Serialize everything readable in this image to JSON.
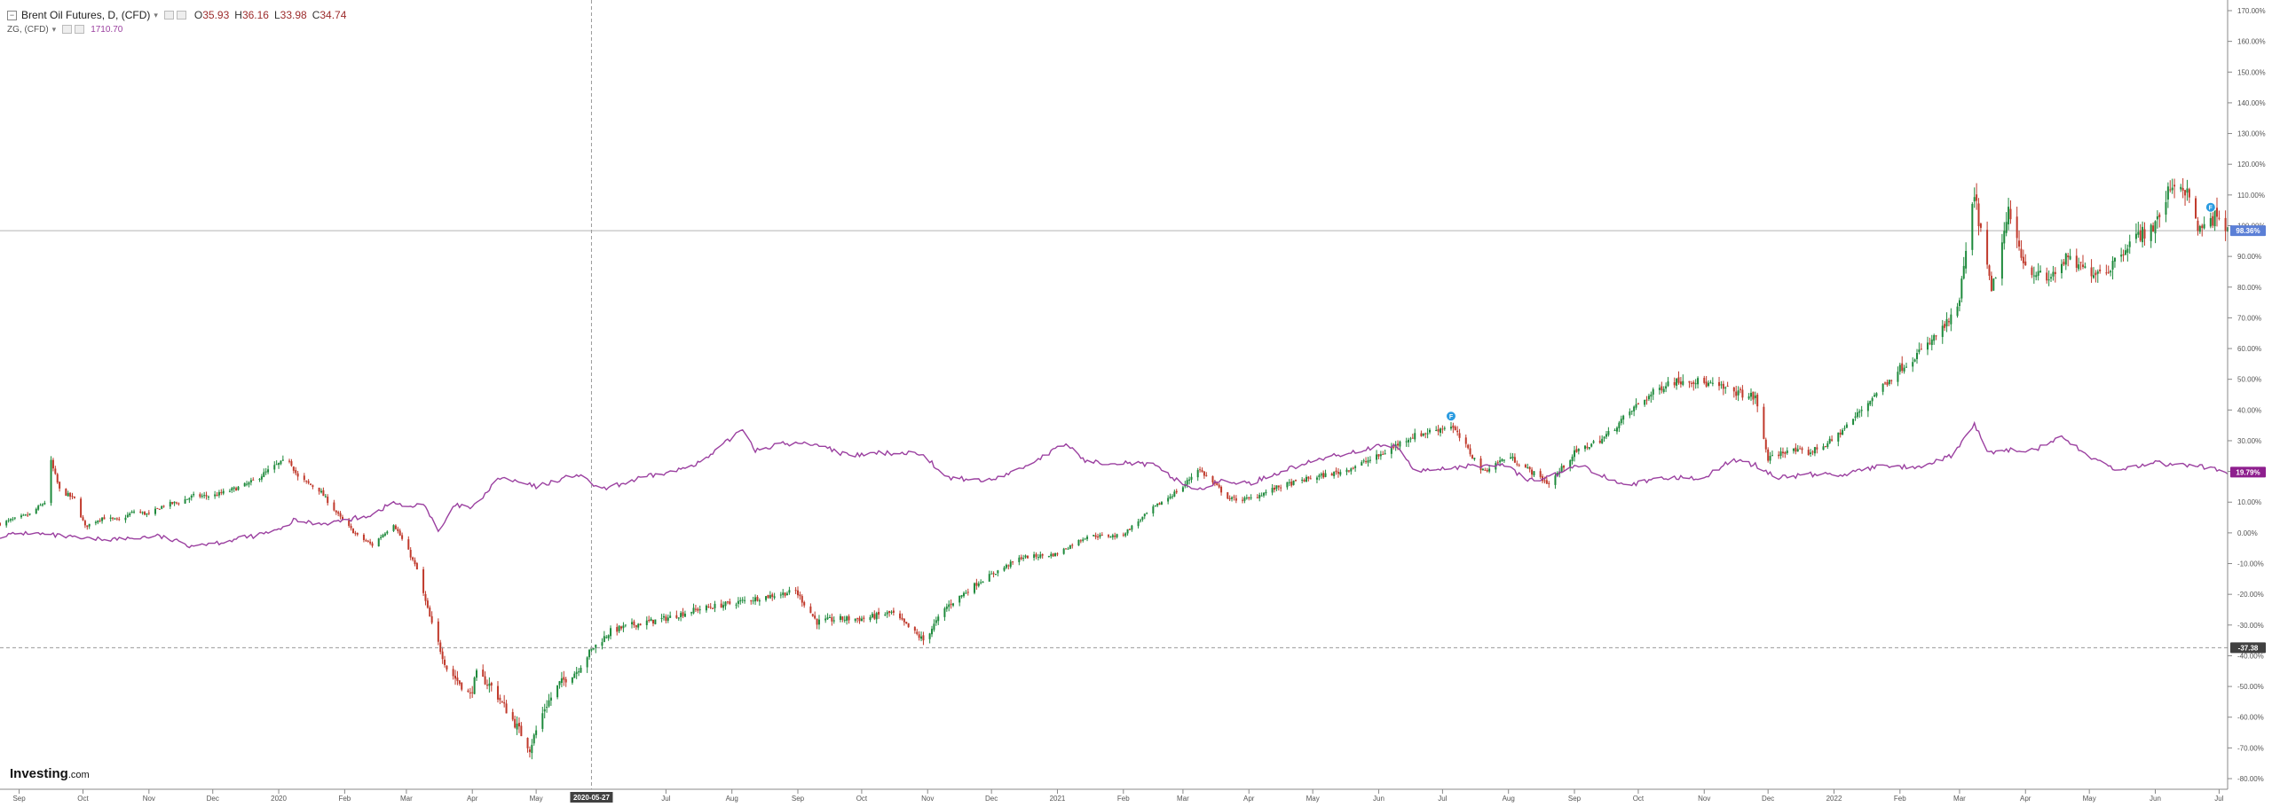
{
  "legend": {
    "title": "Brent Oil Futures, D, (CFD)",
    "caret": "▾",
    "collapse": "−",
    "ohlc": {
      "o_label": "O",
      "o": "35.93",
      "h_label": "H",
      "h": "36.16",
      "l_label": "L",
      "l": "33.98",
      "c_label": "C",
      "c": "34.74"
    },
    "gold_title": "ZG, (CFD)",
    "gold_caret": "▾",
    "gold_value": "1710.70"
  },
  "logo": {
    "main": "Investing",
    "suffix": ".com"
  },
  "colors": {
    "up": "#1e8a3c",
    "down": "#c0392b",
    "gold_line": "#9b40a0",
    "crosshair": "#9a9a9a",
    "brent_badge": "#5b7fd6",
    "gold_badge": "#8e1f8e",
    "low_badge": "#404040",
    "axis_text": "#555555"
  },
  "chart_data": {
    "type": "line",
    "y_unit": "%",
    "ylim": [
      -80,
      170
    ],
    "y_ticks": [
      170,
      160,
      150,
      140,
      130,
      120,
      110,
      100,
      90,
      80,
      70,
      60,
      50,
      40,
      30,
      20,
      10,
      0,
      -10,
      -20,
      -30,
      -40,
      -50,
      -60,
      -70,
      -80
    ],
    "x_range": [
      "2019-08-23",
      "2022-07-05"
    ],
    "x_ticks": [
      {
        "label": "Sep",
        "date": "2019-09-01"
      },
      {
        "label": "Oct",
        "date": "2019-10-01"
      },
      {
        "label": "Nov",
        "date": "2019-11-01"
      },
      {
        "label": "Dec",
        "date": "2019-12-01"
      },
      {
        "label": "2020",
        "date": "2020-01-01"
      },
      {
        "label": "Feb",
        "date": "2020-02-01"
      },
      {
        "label": "Mar",
        "date": "2020-03-01"
      },
      {
        "label": "Apr",
        "date": "2020-04-01"
      },
      {
        "label": "May",
        "date": "2020-05-01"
      },
      {
        "label": "Jul",
        "date": "2020-07-01"
      },
      {
        "label": "Aug",
        "date": "2020-08-01"
      },
      {
        "label": "Sep",
        "date": "2020-09-01"
      },
      {
        "label": "Oct",
        "date": "2020-10-01"
      },
      {
        "label": "Nov",
        "date": "2020-11-01"
      },
      {
        "label": "Dec",
        "date": "2020-12-01"
      },
      {
        "label": "2021",
        "date": "2021-01-01"
      },
      {
        "label": "Feb",
        "date": "2021-02-01"
      },
      {
        "label": "Mar",
        "date": "2021-03-01"
      },
      {
        "label": "Apr",
        "date": "2021-04-01"
      },
      {
        "label": "May",
        "date": "2021-05-01"
      },
      {
        "label": "Jun",
        "date": "2021-06-01"
      },
      {
        "label": "Jul",
        "date": "2021-07-01"
      },
      {
        "label": "Aug",
        "date": "2021-08-01"
      },
      {
        "label": "Sep",
        "date": "2021-09-01"
      },
      {
        "label": "Oct",
        "date": "2021-10-01"
      },
      {
        "label": "Nov",
        "date": "2021-11-01"
      },
      {
        "label": "Dec",
        "date": "2021-12-01"
      },
      {
        "label": "2022",
        "date": "2022-01-01"
      },
      {
        "label": "Feb",
        "date": "2022-02-01"
      },
      {
        "label": "Mar",
        "date": "2022-03-01"
      },
      {
        "label": "Apr",
        "date": "2022-04-01"
      },
      {
        "label": "May",
        "date": "2022-05-01"
      },
      {
        "label": "Jun",
        "date": "2022-06-01"
      },
      {
        "label": "Jul",
        "date": "2022-07-01"
      }
    ],
    "crosshair": {
      "date": "2020-05-27",
      "date_label": "2020-05-27",
      "y": -37.38,
      "y_label": "-37.38"
    },
    "reference_line": {
      "y": 98.36
    },
    "series": [
      {
        "name": "Brent Oil Futures, D, (CFD)",
        "style": "candlestick",
        "last_label": "98.36%",
        "last_value": 98.36,
        "points": [
          [
            "2019-08-23",
            3
          ],
          [
            "2019-09-06",
            6
          ],
          [
            "2019-09-13",
            10
          ],
          [
            "2019-09-16",
            23
          ],
          [
            "2019-09-20",
            14
          ],
          [
            "2019-09-27",
            11
          ],
          [
            "2019-10-02",
            2
          ],
          [
            "2019-10-10",
            5
          ],
          [
            "2019-10-18",
            4
          ],
          [
            "2019-10-25",
            7
          ],
          [
            "2019-11-01",
            6
          ],
          [
            "2019-11-08",
            9
          ],
          [
            "2019-11-15",
            10
          ],
          [
            "2019-11-22",
            12
          ],
          [
            "2019-12-01",
            12
          ],
          [
            "2019-12-10",
            14
          ],
          [
            "2019-12-18",
            16
          ],
          [
            "2019-12-31",
            22
          ],
          [
            "2020-01-06",
            24
          ],
          [
            "2020-01-10",
            18
          ],
          [
            "2020-01-20",
            14
          ],
          [
            "2020-01-31",
            4
          ],
          [
            "2020-02-07",
            -1
          ],
          [
            "2020-02-14",
            -4
          ],
          [
            "2020-02-24",
            3
          ],
          [
            "2020-03-02",
            -6
          ],
          [
            "2020-03-06",
            -12
          ],
          [
            "2020-03-09",
            -20
          ],
          [
            "2020-03-13",
            -30
          ],
          [
            "2020-03-20",
            -44
          ],
          [
            "2020-03-31",
            -53
          ],
          [
            "2020-04-03",
            -46
          ],
          [
            "2020-04-10",
            -50
          ],
          [
            "2020-04-21",
            -62
          ],
          [
            "2020-04-28",
            -70
          ],
          [
            "2020-05-05",
            -57
          ],
          [
            "2020-05-12",
            -49
          ],
          [
            "2020-05-20",
            -45
          ],
          [
            "2020-05-27",
            -38
          ],
          [
            "2020-06-05",
            -32
          ],
          [
            "2020-06-15",
            -30
          ],
          [
            "2020-06-30",
            -28
          ],
          [
            "2020-07-15",
            -25
          ],
          [
            "2020-07-31",
            -23
          ],
          [
            "2020-08-15",
            -21
          ],
          [
            "2020-08-31",
            -19
          ],
          [
            "2020-09-10",
            -29
          ],
          [
            "2020-09-20",
            -28
          ],
          [
            "2020-10-01",
            -28
          ],
          [
            "2020-10-15",
            -26
          ],
          [
            "2020-10-30",
            -35
          ],
          [
            "2020-11-10",
            -24
          ],
          [
            "2020-11-25",
            -16
          ],
          [
            "2020-12-15",
            -8
          ],
          [
            "2020-12-31",
            -7
          ],
          [
            "2021-01-15",
            -1
          ],
          [
            "2021-01-31",
            -1
          ],
          [
            "2021-02-15",
            8
          ],
          [
            "2021-03-01",
            15
          ],
          [
            "2021-03-08",
            21
          ],
          [
            "2021-03-23",
            11
          ],
          [
            "2021-04-01",
            11
          ],
          [
            "2021-04-15",
            15
          ],
          [
            "2021-05-01",
            18
          ],
          [
            "2021-05-15",
            20
          ],
          [
            "2021-06-01",
            25
          ],
          [
            "2021-06-15",
            31
          ],
          [
            "2021-07-05",
            35
          ],
          [
            "2021-07-10",
            30
          ],
          [
            "2021-07-20",
            20
          ],
          [
            "2021-08-01",
            25
          ],
          [
            "2021-08-20",
            16
          ],
          [
            "2021-09-01",
            26
          ],
          [
            "2021-09-15",
            31
          ],
          [
            "2021-10-01",
            42
          ],
          [
            "2021-10-15",
            49
          ],
          [
            "2021-10-25",
            50
          ],
          [
            "2021-11-05",
            48
          ],
          [
            "2021-11-25",
            44
          ],
          [
            "2021-12-01",
            24
          ],
          [
            "2021-12-10",
            27
          ],
          [
            "2021-12-20",
            26
          ],
          [
            "2021-12-31",
            30
          ],
          [
            "2022-01-10",
            37
          ],
          [
            "2022-01-20",
            45
          ],
          [
            "2022-01-31",
            53
          ],
          [
            "2022-02-14",
            61
          ],
          [
            "2022-02-28",
            72
          ],
          [
            "2022-03-08",
            110
          ],
          [
            "2022-03-16",
            78
          ],
          [
            "2022-03-24",
            104
          ],
          [
            "2022-04-01",
            87
          ],
          [
            "2022-04-11",
            82
          ],
          [
            "2022-04-20",
            89
          ],
          [
            "2022-05-01",
            85
          ],
          [
            "2022-05-10",
            86
          ],
          [
            "2022-05-20",
            95
          ],
          [
            "2022-06-01",
            100
          ],
          [
            "2022-06-09",
            114
          ],
          [
            "2022-06-15",
            112
          ],
          [
            "2022-06-22",
            98
          ],
          [
            "2022-06-29",
            103
          ],
          [
            "2022-07-05",
            98
          ]
        ]
      },
      {
        "name": "ZG, (CFD)",
        "style": "line",
        "last_label": "19.79%",
        "last_value": 19.79,
        "points": [
          [
            "2019-08-23",
            -1
          ],
          [
            "2019-09-05",
            0
          ],
          [
            "2019-09-20",
            -1
          ],
          [
            "2019-10-01",
            -2
          ],
          [
            "2019-10-20",
            -2
          ],
          [
            "2019-11-05",
            -1
          ],
          [
            "2019-11-20",
            -4
          ],
          [
            "2019-12-05",
            -3
          ],
          [
            "2019-12-20",
            -1
          ],
          [
            "2020-01-02",
            1
          ],
          [
            "2020-01-08",
            4
          ],
          [
            "2020-01-20",
            3
          ],
          [
            "2020-02-01",
            4
          ],
          [
            "2020-02-14",
            6
          ],
          [
            "2020-02-24",
            10
          ],
          [
            "2020-03-02",
            8
          ],
          [
            "2020-03-09",
            10
          ],
          [
            "2020-03-16",
            0
          ],
          [
            "2020-03-24",
            9
          ],
          [
            "2020-04-01",
            8
          ],
          [
            "2020-04-14",
            18
          ],
          [
            "2020-05-01",
            15
          ],
          [
            "2020-05-20",
            19
          ],
          [
            "2020-06-01",
            14
          ],
          [
            "2020-06-20",
            18
          ],
          [
            "2020-07-05",
            20
          ],
          [
            "2020-07-20",
            24
          ],
          [
            "2020-08-06",
            34
          ],
          [
            "2020-08-12",
            27
          ],
          [
            "2020-08-25",
            29
          ],
          [
            "2020-09-10",
            29
          ],
          [
            "2020-09-25",
            25
          ],
          [
            "2020-10-10",
            26
          ],
          [
            "2020-10-30",
            26
          ],
          [
            "2020-11-09",
            18
          ],
          [
            "2020-11-30",
            17
          ],
          [
            "2020-12-15",
            21
          ],
          [
            "2021-01-05",
            29
          ],
          [
            "2021-01-15",
            23
          ],
          [
            "2021-02-01",
            23
          ],
          [
            "2021-02-15",
            22
          ],
          [
            "2021-03-01",
            16
          ],
          [
            "2021-03-08",
            14
          ],
          [
            "2021-03-20",
            17
          ],
          [
            "2021-04-01",
            16
          ],
          [
            "2021-04-20",
            21
          ],
          [
            "2021-05-10",
            25
          ],
          [
            "2021-05-31",
            28
          ],
          [
            "2021-06-10",
            28
          ],
          [
            "2021-06-18",
            20
          ],
          [
            "2021-07-01",
            21
          ],
          [
            "2021-07-20",
            22
          ],
          [
            "2021-08-01",
            22
          ],
          [
            "2021-08-09",
            17
          ],
          [
            "2021-08-20",
            18
          ],
          [
            "2021-09-03",
            22
          ],
          [
            "2021-09-20",
            17
          ],
          [
            "2021-09-30",
            16
          ],
          [
            "2021-10-15",
            18
          ],
          [
            "2021-11-01",
            18
          ],
          [
            "2021-11-15",
            24
          ],
          [
            "2021-11-25",
            22
          ],
          [
            "2021-12-05",
            18
          ],
          [
            "2021-12-20",
            19
          ],
          [
            "2022-01-05",
            19
          ],
          [
            "2022-01-25",
            22
          ],
          [
            "2022-02-10",
            21
          ],
          [
            "2022-02-25",
            25
          ],
          [
            "2022-03-08",
            35
          ],
          [
            "2022-03-15",
            26
          ],
          [
            "2022-03-25",
            27
          ],
          [
            "2022-04-05",
            27
          ],
          [
            "2022-04-18",
            31
          ],
          [
            "2022-05-01",
            25
          ],
          [
            "2022-05-15",
            20
          ],
          [
            "2022-05-30",
            23
          ],
          [
            "2022-06-10",
            22
          ],
          [
            "2022-06-20",
            22
          ],
          [
            "2022-07-05",
            19.79
          ]
        ]
      }
    ],
    "markers": [
      {
        "date": "2021-07-05",
        "y": 38,
        "label": "F"
      },
      {
        "date": "2022-06-27",
        "y": 106,
        "label": "F"
      }
    ]
  }
}
